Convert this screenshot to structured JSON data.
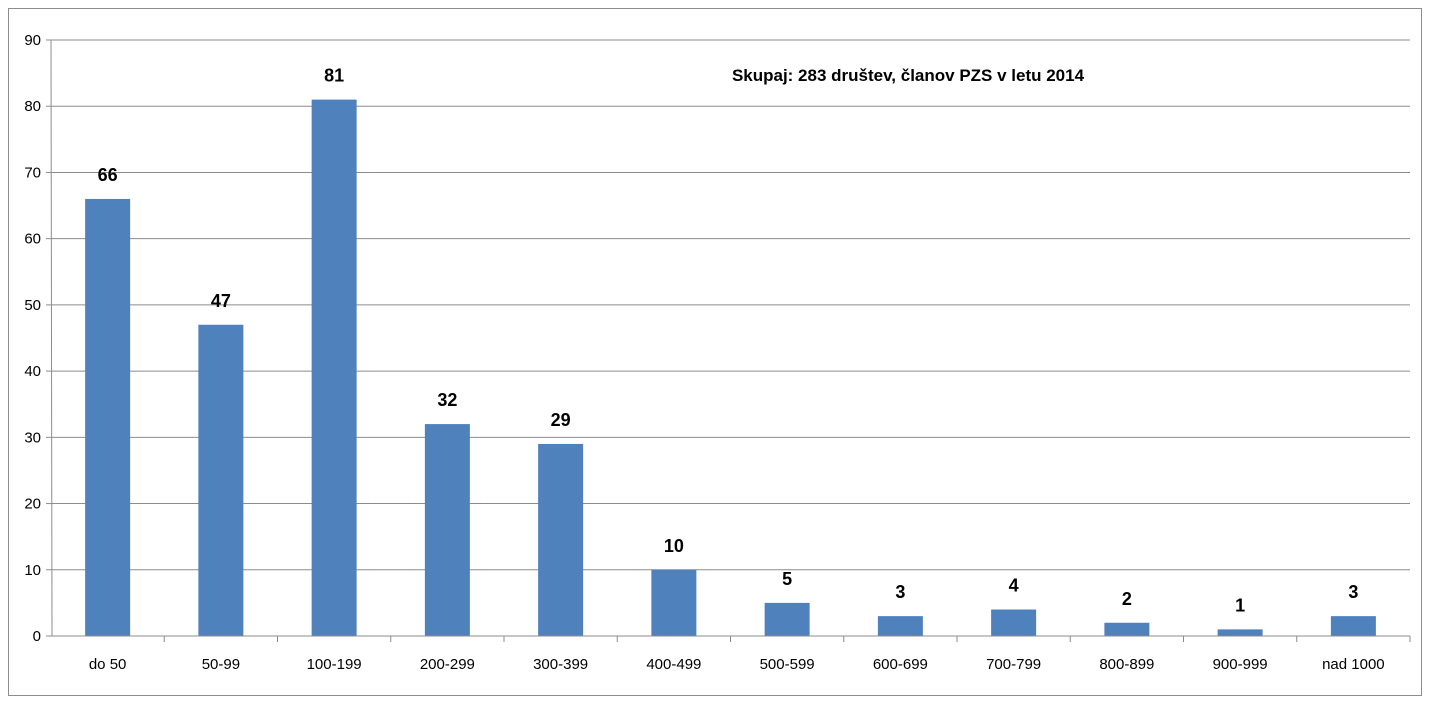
{
  "chart_data": {
    "type": "bar",
    "annotation": "Skupaj: 283 društev, članov PZS v letu 2014",
    "categories": [
      "do 50",
      "50-99",
      "100-199",
      "200-299",
      "300-399",
      "400-499",
      "500-599",
      "600-699",
      "700-799",
      "800-899",
      "900-999",
      "nad 1000"
    ],
    "values": [
      66,
      47,
      81,
      32,
      29,
      10,
      5,
      3,
      4,
      2,
      1,
      3
    ],
    "ylim": [
      0,
      90
    ],
    "yticks": [
      0,
      10,
      20,
      30,
      40,
      50,
      60,
      70,
      80,
      90
    ],
    "grid": true,
    "legend": "none",
    "bar_color": "#4f81bd"
  }
}
